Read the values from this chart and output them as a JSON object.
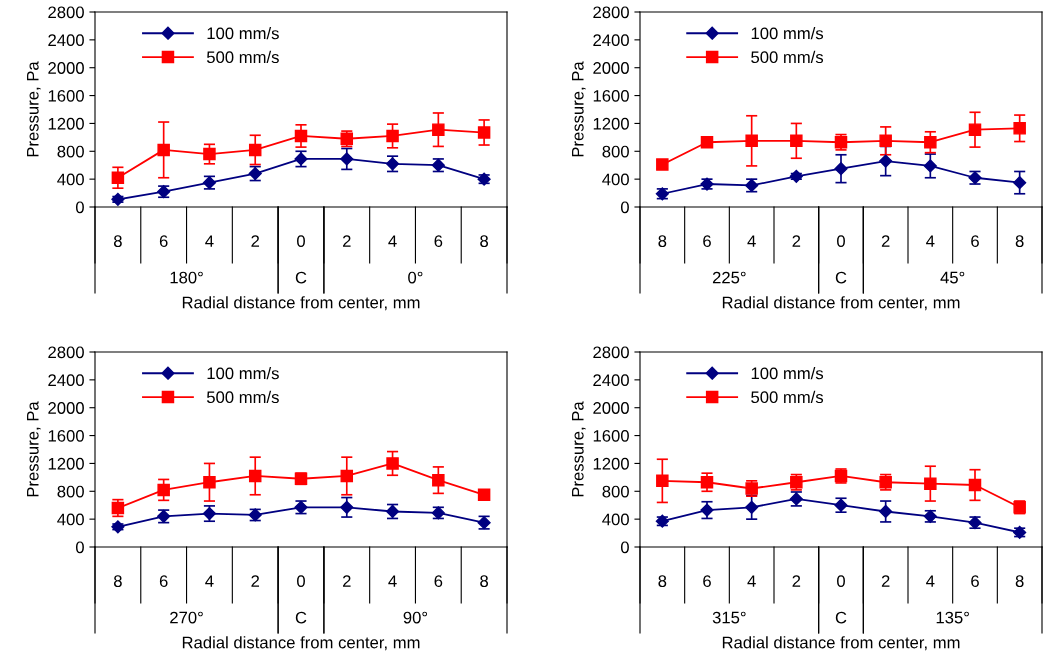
{
  "chart_data": [
    {
      "type": "line",
      "xlabel": "Radial distance from center, mm",
      "ylabel": "Pressure, Pa",
      "categories": [
        "8",
        "6",
        "4",
        "2",
        "0",
        "2",
        "4",
        "6",
        "8"
      ],
      "annotations": [
        "180°",
        "C",
        "0°"
      ],
      "ylim": [
        0,
        2800
      ],
      "yticks": [
        0,
        400,
        800,
        1200,
        1600,
        2000,
        2400,
        2800
      ],
      "grid": false,
      "legend": "top left",
      "series": [
        {
          "name": "100 mm/s",
          "color": "#000080",
          "marker": "diamond",
          "values": [
            110,
            220,
            350,
            480,
            690,
            690,
            620,
            600,
            400
          ],
          "errors": [
            40,
            80,
            90,
            100,
            110,
            150,
            110,
            90,
            60
          ]
        },
        {
          "name": "500 mm/s",
          "color": "#ff0000",
          "marker": "square",
          "values": [
            420,
            820,
            760,
            820,
            1020,
            980,
            1020,
            1110,
            1070
          ],
          "errors": [
            150,
            400,
            140,
            210,
            160,
            110,
            170,
            240,
            180
          ]
        }
      ]
    },
    {
      "type": "line",
      "xlabel": "Radial distance from center, mm",
      "ylabel": "Pressure, Pa",
      "categories": [
        "8",
        "6",
        "4",
        "2",
        "0",
        "2",
        "4",
        "6",
        "8"
      ],
      "annotations": [
        "225°",
        "C",
        "45°"
      ],
      "ylim": [
        0,
        2800
      ],
      "yticks": [
        0,
        400,
        800,
        1200,
        1600,
        2000,
        2400,
        2800
      ],
      "grid": false,
      "legend": "top left",
      "series": [
        {
          "name": "100 mm/s",
          "color": "#000080",
          "marker": "diamond",
          "values": [
            190,
            330,
            310,
            440,
            550,
            660,
            590,
            420,
            350
          ],
          "errors": [
            70,
            70,
            90,
            40,
            200,
            210,
            170,
            90,
            160
          ]
        },
        {
          "name": "500 mm/s",
          "color": "#ff0000",
          "marker": "square",
          "values": [
            610,
            930,
            950,
            950,
            930,
            950,
            930,
            1110,
            1130
          ],
          "errors": [
            60,
            50,
            360,
            250,
            110,
            200,
            150,
            250,
            190
          ]
        }
      ]
    },
    {
      "type": "line",
      "xlabel": "Radial distance from center, mm",
      "ylabel": "Pressure, Pa",
      "categories": [
        "8",
        "6",
        "4",
        "2",
        "0",
        "2",
        "4",
        "6",
        "8"
      ],
      "annotations": [
        "270°",
        "C",
        "90°"
      ],
      "ylim": [
        0,
        2800
      ],
      "yticks": [
        0,
        400,
        800,
        1200,
        1600,
        2000,
        2400,
        2800
      ],
      "grid": false,
      "legend": "top left",
      "series": [
        {
          "name": "100 mm/s",
          "color": "#000080",
          "marker": "diamond",
          "values": [
            290,
            440,
            480,
            460,
            570,
            570,
            510,
            490,
            350
          ],
          "errors": [
            40,
            90,
            110,
            80,
            90,
            140,
            100,
            80,
            90
          ]
        },
        {
          "name": "500 mm/s",
          "color": "#ff0000",
          "marker": "square",
          "values": [
            560,
            820,
            930,
            1020,
            980,
            1020,
            1200,
            960,
            750
          ],
          "errors": [
            120,
            150,
            270,
            270,
            80,
            270,
            170,
            190,
            70
          ]
        }
      ]
    },
    {
      "type": "line",
      "xlabel": "Radial distance from center, mm",
      "ylabel": "Pressure, Pa",
      "categories": [
        "8",
        "6",
        "4",
        "2",
        "0",
        "2",
        "4",
        "6",
        "8"
      ],
      "annotations": [
        "315°",
        "C",
        "135°"
      ],
      "ylim": [
        0,
        2800
      ],
      "yticks": [
        0,
        400,
        800,
        1200,
        1600,
        2000,
        2400,
        2800
      ],
      "grid": false,
      "legend": "top left",
      "series": [
        {
          "name": "100 mm/s",
          "color": "#000080",
          "marker": "diamond",
          "values": [
            370,
            530,
            570,
            690,
            600,
            510,
            440,
            350,
            210
          ],
          "errors": [
            60,
            120,
            170,
            100,
            100,
            150,
            80,
            80,
            60
          ]
        },
        {
          "name": "500 mm/s",
          "color": "#ff0000",
          "marker": "square",
          "values": [
            950,
            930,
            840,
            930,
            1020,
            930,
            910,
            890,
            570
          ],
          "errors": [
            310,
            130,
            110,
            110,
            100,
            110,
            250,
            220,
            90
          ]
        }
      ]
    }
  ]
}
